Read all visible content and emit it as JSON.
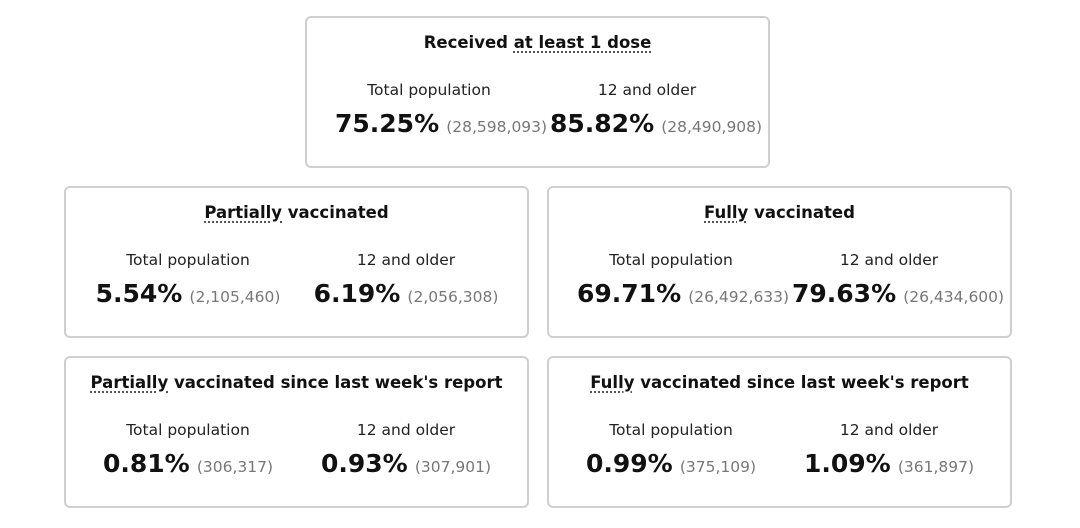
{
  "cards": {
    "received": {
      "title_pre": "Received ",
      "title_u": "at least 1 dose",
      "title_post": "",
      "total": {
        "label": "Total population",
        "pct": "75.25%",
        "count": "(28,598,093)"
      },
      "older": {
        "label": "12 and older",
        "pct": "85.82%",
        "count": "(28,490,908)"
      }
    },
    "partially": {
      "title_pre": "",
      "title_u": "Partially",
      "title_post": " vaccinated",
      "total": {
        "label": "Total population",
        "pct": "5.54%",
        "count": "(2,105,460)"
      },
      "older": {
        "label": "12 and older",
        "pct": "6.19%",
        "count": "(2,056,308)"
      }
    },
    "fully": {
      "title_pre": "",
      "title_u": "Fully",
      "title_post": " vaccinated",
      "total": {
        "label": "Total population",
        "pct": "69.71%",
        "count": "(26,492,633)"
      },
      "older": {
        "label": "12 and older",
        "pct": "79.63%",
        "count": "(26,434,600)"
      }
    },
    "partially_week": {
      "title_pre": "",
      "title_u": "Partially",
      "title_post": " vaccinated since last week's report",
      "total": {
        "label": "Total population",
        "pct": "0.81%",
        "count": "(306,317)"
      },
      "older": {
        "label": "12 and older",
        "pct": "0.93%",
        "count": "(307,901)"
      }
    },
    "fully_week": {
      "title_pre": "",
      "title_u": "Fully",
      "title_post": " vaccinated since last week's report",
      "total": {
        "label": "Total population",
        "pct": "0.99%",
        "count": "(375,109)"
      },
      "older": {
        "label": "12 and older",
        "pct": "1.09%",
        "count": "(361,897)"
      }
    }
  },
  "colors": {
    "border": "#cfcfcf",
    "text": "#111111",
    "muted": "#777777",
    "background": "#ffffff"
  }
}
